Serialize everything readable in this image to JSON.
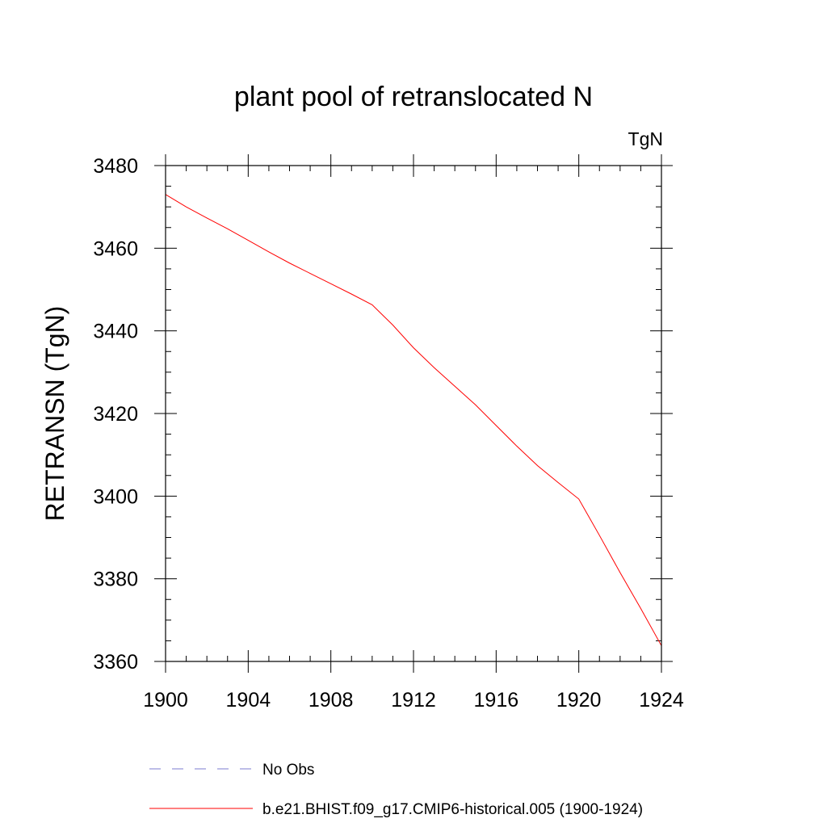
{
  "chart_data": {
    "type": "line",
    "title": "plant pool of retranslocated N",
    "units": "TgN",
    "xlabel": "",
    "ylabel": "RETRANSN  (TgN)",
    "xlim": [
      1900,
      1924
    ],
    "ylim": [
      3360,
      3480
    ],
    "xticks": [
      1900,
      1904,
      1908,
      1912,
      1916,
      1920,
      1924
    ],
    "xtick_labels": [
      "1900",
      "1904",
      "1908",
      "1912",
      "1916",
      "1920",
      "1924"
    ],
    "yticks": [
      3360,
      3380,
      3400,
      3420,
      3440,
      3460,
      3480
    ],
    "ytick_labels": [
      "3360",
      "3380",
      "3400",
      "3420",
      "3440",
      "3460",
      "3480"
    ],
    "x_minor_step": 1,
    "y_minor_step": 5,
    "grid": false,
    "legend_position": "bottom",
    "series": [
      {
        "name": "No Obs",
        "color": "#7b7bd0",
        "dash": "dashed",
        "x": [],
        "y": []
      },
      {
        "name": "b.e21.BHIST.f09_g17.CMIP6-historical.005 (1900-1924)",
        "color": "#ff0000",
        "dash": "solid",
        "x": [
          1900,
          1901,
          1902,
          1903,
          1904,
          1905,
          1906,
          1907,
          1908,
          1909,
          1910,
          1911,
          1912,
          1913,
          1914,
          1915,
          1916,
          1917,
          1918,
          1919,
          1920,
          1921,
          1922,
          1923,
          1924
        ],
        "y": [
          3473,
          3470,
          3467.3,
          3464.7,
          3461.9,
          3459.1,
          3456.4,
          3453.9,
          3451.4,
          3448.9,
          3446.3,
          3441.4,
          3435.9,
          3431.1,
          3426.6,
          3422.1,
          3417.1,
          3412.1,
          3407.4,
          3403.3,
          3399.3,
          3390.5,
          3381.5,
          3372.8,
          3363.8
        ]
      }
    ]
  }
}
